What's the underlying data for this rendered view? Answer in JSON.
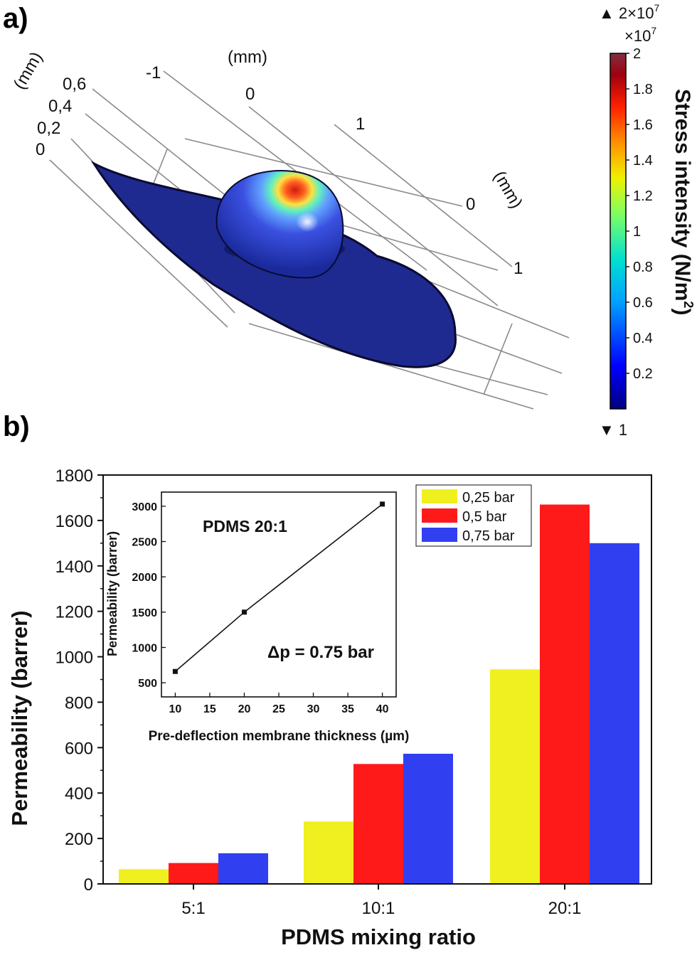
{
  "panel_a_label": "a)",
  "panel_b_label": "b)",
  "panel_a": {
    "axis_unit_label_left": "(mm)",
    "axis_unit_label_top": "(mm)",
    "axis_unit_label_right": "(mm)",
    "z_ticks": [
      "0,6",
      "0,4",
      "0,2",
      "0"
    ],
    "x_ticks": [
      "-1",
      "0",
      "1"
    ],
    "y_ticks": [
      "0",
      "1"
    ],
    "colorbar": {
      "max_marker": "▲ 2×10",
      "max_marker_exp": "7",
      "multiplier": "×10",
      "multiplier_exp": "7",
      "min_marker": "▼ 1",
      "ticks": [
        "2",
        "1.8",
        "1.6",
        "1.4",
        "1.2",
        "1",
        "0.8",
        "0.6",
        "0.4",
        "0.2"
      ],
      "label": "Stress intensity (N/m",
      "label_sup": "2",
      "label_end": ")",
      "colormap": [
        "#000080",
        "#0000ff",
        "#00bfff",
        "#00ffbf",
        "#bfff00",
        "#ffbf00",
        "#ff3000",
        "#a00000",
        "#7a2030"
      ]
    },
    "colors": {
      "membrane": "#1a2a8c",
      "dome_hot": "#e03010"
    }
  },
  "chart_data": [
    {
      "type": "bar",
      "xlabel": "PDMS mixing ratio",
      "ylabel": "Permeability (barrer)",
      "categories": [
        "5:1",
        "10:1",
        "20:1"
      ],
      "ylim": [
        0,
        1800
      ],
      "yticks": [
        0,
        200,
        400,
        600,
        800,
        1000,
        1200,
        1400,
        1600,
        1800
      ],
      "legend_position": "top-right",
      "series": [
        {
          "name": "0,25 bar",
          "color": "#f0f020",
          "values": [
            65,
            275,
            945
          ]
        },
        {
          "name": "0,5 bar",
          "color": "#ff1a1a",
          "values": [
            92,
            528,
            1670
          ]
        },
        {
          "name": "0,75 bar",
          "color": "#3040f0",
          "values": [
            135,
            573,
            1500
          ]
        }
      ]
    },
    {
      "type": "line",
      "title": "PDMS 20:1",
      "annotation": "Δp = 0.75 bar",
      "xlabel": "Pre-deflection membrane thickness (µm)",
      "ylabel": "Permeability (barrer)",
      "xlim": [
        8,
        42
      ],
      "ylim": [
        300,
        3200
      ],
      "xticks": [
        10,
        15,
        20,
        25,
        30,
        35,
        40
      ],
      "yticks": [
        500,
        1000,
        1500,
        2000,
        2500,
        3000
      ],
      "series": [
        {
          "x": [
            10,
            20,
            40
          ],
          "values": [
            660,
            1500,
            3030
          ]
        }
      ]
    }
  ]
}
